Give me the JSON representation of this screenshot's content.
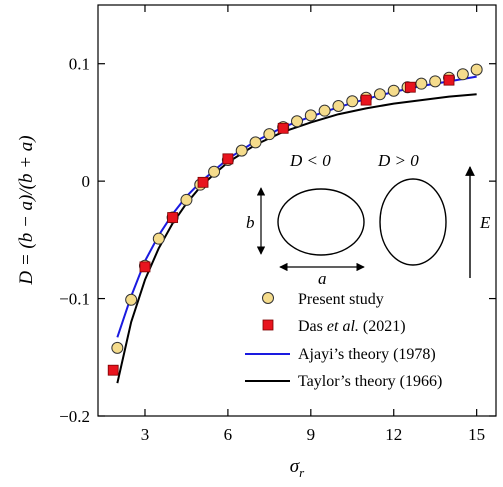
{
  "chart_data": {
    "type": "scatter",
    "xlabel": "σr",
    "ylabel": "D = (b − a)/(b + a)",
    "xlim": [
      1.3,
      15.7
    ],
    "ylim": [
      -0.2,
      0.15
    ],
    "xticks": [
      3,
      6,
      9,
      12,
      15
    ],
    "yticks": [
      -0.2,
      -0.1,
      0,
      0.1
    ],
    "xtick_labels": [
      "3",
      "6",
      "9",
      "12",
      "15"
    ],
    "ytick_labels": [
      "−0.2",
      "−0.1",
      "0",
      "0.1"
    ],
    "grid": false,
    "legend_position": "bottom-right",
    "series": [
      {
        "name": "Present study",
        "kind": "markers",
        "marker": "circle",
        "color": "#F5DC8C",
        "edge_color": "#333333",
        "points": [
          [
            2.0,
            -0.142
          ],
          [
            2.5,
            -0.101
          ],
          [
            3.0,
            -0.072
          ],
          [
            3.5,
            -0.049
          ],
          [
            4.0,
            -0.031
          ],
          [
            4.5,
            -0.016
          ],
          [
            5.0,
            -0.003
          ],
          [
            5.5,
            0.008
          ],
          [
            6.0,
            0.018
          ],
          [
            6.5,
            0.026
          ],
          [
            7.0,
            0.033
          ],
          [
            7.5,
            0.04
          ],
          [
            8.0,
            0.046
          ],
          [
            8.5,
            0.051
          ],
          [
            9.0,
            0.056
          ],
          [
            9.5,
            0.06
          ],
          [
            10.0,
            0.064
          ],
          [
            10.5,
            0.068
          ],
          [
            11.0,
            0.071
          ],
          [
            11.5,
            0.074
          ],
          [
            12.0,
            0.077
          ],
          [
            12.5,
            0.08
          ],
          [
            13.0,
            0.083
          ],
          [
            13.5,
            0.085
          ],
          [
            14.0,
            0.088
          ],
          [
            14.5,
            0.091
          ],
          [
            15.0,
            0.095
          ]
        ]
      },
      {
        "name": "Das et al. (2021)",
        "kind": "markers",
        "marker": "square",
        "color": "#E8141E",
        "edge_color": "#7A0000",
        "points": [
          [
            1.85,
            -0.161
          ],
          [
            3.0,
            -0.073
          ],
          [
            4.0,
            -0.031
          ],
          [
            5.1,
            -0.001
          ],
          [
            6.0,
            0.019
          ],
          [
            8.0,
            0.045
          ],
          [
            11.0,
            0.069
          ],
          [
            12.6,
            0.08
          ],
          [
            14.0,
            0.086
          ]
        ]
      },
      {
        "name": "Ajayi’s theory (1978)",
        "kind": "line",
        "color": "#1A1AE0",
        "points": [
          [
            2.0,
            -0.133
          ],
          [
            2.5,
            -0.098
          ],
          [
            3.0,
            -0.068
          ],
          [
            3.5,
            -0.046
          ],
          [
            4.0,
            -0.028
          ],
          [
            4.5,
            -0.013
          ],
          [
            5.0,
            -0.001
          ],
          [
            5.5,
            0.009
          ],
          [
            6.0,
            0.019
          ],
          [
            7.0,
            0.034
          ],
          [
            8.0,
            0.046
          ],
          [
            9.0,
            0.055
          ],
          [
            10.0,
            0.063
          ],
          [
            11.0,
            0.07
          ],
          [
            12.0,
            0.076
          ],
          [
            13.0,
            0.081
          ],
          [
            14.0,
            0.085
          ],
          [
            15.0,
            0.089
          ]
        ]
      },
      {
        "name": "Taylor’s theory (1966)",
        "kind": "line",
        "color": "#000000",
        "points": [
          [
            2.0,
            -0.172
          ],
          [
            2.5,
            -0.12
          ],
          [
            3.0,
            -0.084
          ],
          [
            3.5,
            -0.057
          ],
          [
            4.0,
            -0.036
          ],
          [
            4.5,
            -0.019
          ],
          [
            5.0,
            -0.005
          ],
          [
            5.5,
            0.006
          ],
          [
            6.0,
            0.016
          ],
          [
            7.0,
            0.031
          ],
          [
            8.0,
            0.042
          ],
          [
            9.0,
            0.05
          ],
          [
            10.0,
            0.057
          ],
          [
            11.0,
            0.062
          ],
          [
            12.0,
            0.066
          ],
          [
            13.0,
            0.069
          ],
          [
            14.0,
            0.072
          ],
          [
            15.0,
            0.074
          ]
        ]
      }
    ],
    "inset": {
      "left_label": "D < 0",
      "right_label": "D > 0",
      "b_label": "b",
      "a_label": "a",
      "field_label": "E"
    }
  }
}
